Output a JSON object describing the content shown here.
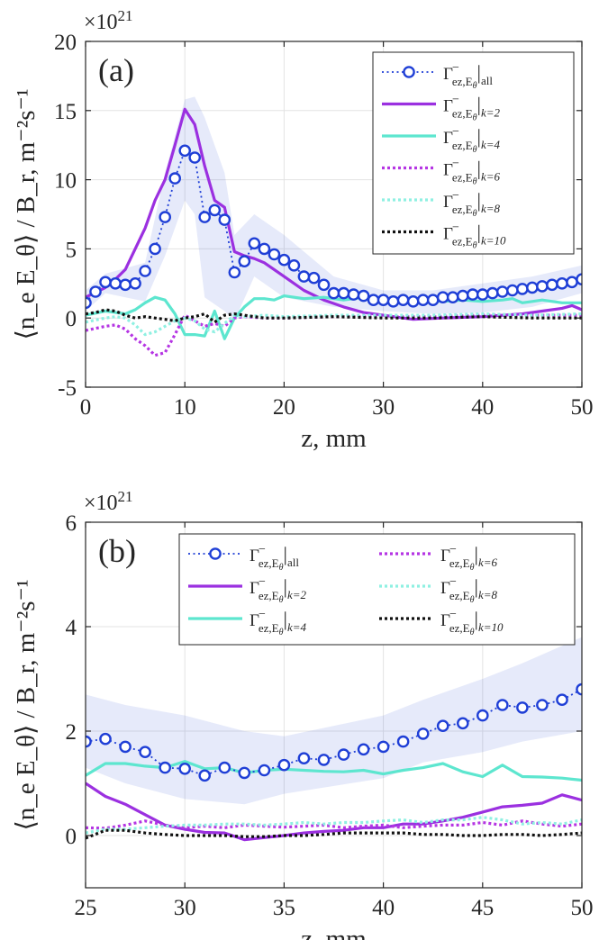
{
  "chart_data": [
    {
      "type": "line",
      "panel_label": "(a)",
      "exponent_label": "×10",
      "exponent_power": "21",
      "xlabel": "z, mm",
      "ylabel": "⟨n_e E_θ⟩ / B_r, m⁻²s⁻¹",
      "xlim": [
        0,
        50
      ],
      "ylim": [
        -5,
        20
      ],
      "xticks": [
        0,
        10,
        20,
        30,
        40,
        50
      ],
      "yticks": [
        -5,
        0,
        5,
        10,
        15,
        20
      ],
      "grid": true,
      "legend_position": "top-right",
      "legend_columns": 1,
      "band": {
        "x": [
          0,
          2,
          4,
          6,
          8,
          10,
          11,
          12,
          14,
          15,
          17,
          20,
          25,
          30,
          35,
          40,
          45,
          50
        ],
        "upper": [
          2.0,
          3.2,
          3.6,
          4.0,
          10.5,
          15.8,
          16.0,
          14.5,
          10.5,
          6.0,
          7.5,
          6.0,
          3.0,
          2.0,
          2.0,
          2.5,
          3.0,
          3.8
        ],
        "lower": [
          0.5,
          1.8,
          1.5,
          1.2,
          4.5,
          8.5,
          7.5,
          1.5,
          0.5,
          -0.2,
          3.0,
          1.5,
          0.8,
          0.5,
          0.3,
          0.4,
          0.8,
          1.8
        ]
      },
      "series": [
        {
          "name": "all",
          "sub": "all",
          "color": "#1f3fd6",
          "style": "dotted-circles",
          "x": [
            0,
            1,
            2,
            3,
            4,
            5,
            6,
            7,
            8,
            9,
            10,
            11,
            12,
            13,
            14,
            15,
            16,
            17,
            18,
            19,
            20,
            21,
            22,
            23,
            24,
            25,
            26,
            27,
            28,
            29,
            30,
            31,
            32,
            33,
            34,
            35,
            36,
            37,
            38,
            39,
            40,
            41,
            42,
            43,
            44,
            45,
            46,
            47,
            48,
            49,
            50
          ],
          "y": [
            1.1,
            1.9,
            2.6,
            2.5,
            2.4,
            2.5,
            3.4,
            5.0,
            7.3,
            10.1,
            12.1,
            11.6,
            7.3,
            7.8,
            7.1,
            3.3,
            4.1,
            5.4,
            5.0,
            4.6,
            4.2,
            3.8,
            3.0,
            2.9,
            2.4,
            1.8,
            1.8,
            1.7,
            1.6,
            1.3,
            1.3,
            1.2,
            1.3,
            1.2,
            1.3,
            1.3,
            1.5,
            1.5,
            1.6,
            1.7,
            1.7,
            1.8,
            1.9,
            2.0,
            2.1,
            2.2,
            2.3,
            2.4,
            2.5,
            2.6,
            2.8
          ]
        },
        {
          "name": "k=2",
          "sub": "k=2",
          "color": "#9b30e0",
          "style": "solid",
          "x": [
            0,
            2,
            3,
            4,
            5,
            6,
            7,
            8,
            9,
            10,
            11,
            12,
            13,
            14,
            15,
            16,
            17,
            18,
            20,
            22,
            24,
            26,
            28,
            30,
            33,
            36,
            40,
            44,
            46,
            48,
            49,
            50
          ],
          "y": [
            1.5,
            2.2,
            2.8,
            3.5,
            5.0,
            6.5,
            8.5,
            10.0,
            12.5,
            15.1,
            14.0,
            11.0,
            8.5,
            8.0,
            4.8,
            4.5,
            4.3,
            4.0,
            3.0,
            2.0,
            1.3,
            0.8,
            0.4,
            0.2,
            -0.1,
            0.0,
            0.1,
            0.3,
            0.5,
            0.7,
            0.9,
            0.6
          ]
        },
        {
          "name": "k=4",
          "sub": "k=4",
          "color": "#5de6cf",
          "style": "solid",
          "x": [
            0,
            2,
            4,
            5,
            6,
            7,
            8,
            9,
            10,
            11,
            12,
            13,
            14,
            15,
            16,
            17,
            18,
            19,
            20,
            22,
            24,
            26,
            28,
            30,
            32,
            34,
            36,
            38,
            40,
            42,
            43,
            44,
            45,
            46,
            48,
            50
          ],
          "y": [
            0.2,
            0.5,
            0.3,
            0.6,
            1.1,
            1.5,
            1.3,
            0.3,
            -1.2,
            -1.2,
            -1.3,
            0.5,
            -1.5,
            0.0,
            0.8,
            1.4,
            1.4,
            1.3,
            1.6,
            1.4,
            1.5,
            1.3,
            1.5,
            1.3,
            1.3,
            1.3,
            1.2,
            1.3,
            1.2,
            1.3,
            1.4,
            1.1,
            1.2,
            1.3,
            1.1,
            1.1
          ]
        },
        {
          "name": "k=6",
          "sub": "k=6",
          "color": "#b535e3",
          "style": "dotted",
          "x": [
            0,
            2,
            3,
            4,
            5,
            6,
            7,
            8,
            9,
            10,
            11,
            12,
            13,
            14,
            15,
            16,
            18,
            20,
            25,
            30,
            35,
            40,
            45,
            50
          ],
          "y": [
            -0.9,
            -0.6,
            -0.5,
            -0.8,
            -1.5,
            -2.0,
            -2.7,
            -2.5,
            -1.2,
            0.2,
            -0.2,
            -0.6,
            -0.4,
            -0.6,
            0.0,
            0.1,
            0.0,
            0.0,
            0.1,
            0.1,
            0.1,
            0.2,
            0.2,
            0.2
          ]
        },
        {
          "name": "k=8",
          "sub": "k=8",
          "color": "#8ff0e2",
          "style": "dotted",
          "x": [
            0,
            2,
            3,
            4,
            5,
            6,
            7,
            8,
            9,
            10,
            11,
            12,
            13,
            14,
            15,
            16,
            18,
            20,
            25,
            30,
            35,
            40,
            45,
            50
          ],
          "y": [
            -0.3,
            0.0,
            0.1,
            0.0,
            -0.5,
            -1.2,
            -1.0,
            -0.6,
            -0.2,
            0.0,
            -0.2,
            -0.8,
            -1.0,
            -0.4,
            0.2,
            0.1,
            0.2,
            0.1,
            0.2,
            0.2,
            0.2,
            0.3,
            0.2,
            0.3
          ]
        },
        {
          "name": "k=10",
          "sub": "k=10",
          "color": "#111111",
          "style": "dotted",
          "x": [
            0,
            1,
            2,
            3,
            4,
            5,
            6,
            7,
            8,
            9,
            10,
            11,
            12,
            13,
            14,
            15,
            16,
            18,
            20,
            25,
            30,
            35,
            40,
            45,
            50
          ],
          "y": [
            0.3,
            0.4,
            0.6,
            0.5,
            0.2,
            0.0,
            0.1,
            0.0,
            -0.1,
            -0.2,
            0.0,
            0.1,
            0.3,
            -0.3,
            0.2,
            0.3,
            0.2,
            0.0,
            0.0,
            0.1,
            0.0,
            0.0,
            0.1,
            0.0,
            0.0
          ]
        }
      ]
    },
    {
      "type": "line",
      "panel_label": "(b)",
      "exponent_label": "×10",
      "exponent_power": "21",
      "xlabel": "z, mm",
      "ylabel": "⟨n_e E_θ⟩ / B_r, m⁻²s⁻¹",
      "xlim": [
        25,
        50
      ],
      "ylim": [
        -1,
        6
      ],
      "xticks": [
        25,
        30,
        35,
        40,
        45,
        50
      ],
      "yticks": [
        0,
        2,
        4,
        6
      ],
      "grid": true,
      "legend_position": "top",
      "legend_columns": 2,
      "band": {
        "x": [
          25,
          27,
          30,
          33,
          35,
          40,
          42,
          45,
          47,
          50
        ],
        "upper": [
          2.7,
          2.5,
          2.3,
          2.0,
          1.9,
          2.3,
          2.6,
          3.0,
          3.3,
          3.8
        ],
        "lower": [
          1.3,
          1.0,
          0.7,
          0.6,
          0.8,
          1.1,
          1.4,
          1.6,
          1.8,
          2.0
        ]
      },
      "series": [
        {
          "name": "all",
          "sub": "all",
          "color": "#1f3fd6",
          "style": "dotted-circles",
          "x": [
            25,
            26,
            27,
            28,
            29,
            30,
            31,
            32,
            33,
            34,
            35,
            36,
            37,
            38,
            39,
            40,
            41,
            42,
            43,
            44,
            45,
            46,
            47,
            48,
            49,
            50
          ],
          "y": [
            1.8,
            1.85,
            1.7,
            1.6,
            1.3,
            1.28,
            1.15,
            1.3,
            1.2,
            1.25,
            1.35,
            1.48,
            1.45,
            1.55,
            1.65,
            1.7,
            1.8,
            1.95,
            2.1,
            2.15,
            2.3,
            2.5,
            2.45,
            2.5,
            2.6,
            2.8
          ]
        },
        {
          "name": "k=2",
          "sub": "k=2",
          "color": "#9b30e0",
          "style": "solid",
          "x": [
            25,
            26,
            27,
            28,
            29,
            30,
            31,
            32,
            33,
            34,
            35,
            36,
            37,
            38,
            39,
            40,
            41,
            42,
            43,
            44,
            45,
            46,
            47,
            48,
            49,
            50
          ],
          "y": [
            1.0,
            0.75,
            0.6,
            0.4,
            0.2,
            0.12,
            0.06,
            0.05,
            -0.08,
            -0.04,
            0.0,
            0.05,
            0.08,
            0.1,
            0.15,
            0.15,
            0.22,
            0.22,
            0.28,
            0.35,
            0.45,
            0.55,
            0.58,
            0.62,
            0.78,
            0.68
          ]
        },
        {
          "name": "k=4",
          "sub": "k=4",
          "color": "#5de6cf",
          "style": "solid",
          "x": [
            25,
            26,
            27,
            28,
            29,
            30,
            31,
            32,
            33,
            34,
            35,
            36,
            37,
            38,
            39,
            40,
            41,
            42,
            43,
            44,
            45,
            46,
            47,
            48,
            49,
            50
          ],
          "y": [
            1.15,
            1.38,
            1.38,
            1.33,
            1.3,
            1.42,
            1.28,
            1.3,
            1.2,
            1.25,
            1.27,
            1.25,
            1.23,
            1.22,
            1.25,
            1.18,
            1.25,
            1.3,
            1.38,
            1.22,
            1.13,
            1.35,
            1.13,
            1.12,
            1.1,
            1.06
          ]
        },
        {
          "name": "k=6",
          "sub": "k=6",
          "color": "#b535e3",
          "style": "dotted",
          "x": [
            25,
            26,
            27,
            28,
            29,
            30,
            31,
            32,
            33,
            34,
            35,
            36,
            37,
            38,
            39,
            40,
            41,
            42,
            43,
            44,
            45,
            46,
            47,
            48,
            49,
            50
          ],
          "y": [
            0.15,
            0.14,
            0.2,
            0.28,
            0.2,
            0.15,
            0.18,
            0.15,
            0.2,
            0.18,
            0.16,
            0.18,
            0.2,
            0.15,
            0.18,
            0.2,
            0.15,
            0.18,
            0.2,
            0.2,
            0.25,
            0.2,
            0.28,
            0.22,
            0.18,
            0.22
          ]
        },
        {
          "name": "k=8",
          "sub": "k=8",
          "color": "#8ff0e2",
          "style": "dotted",
          "x": [
            25,
            26,
            27,
            28,
            29,
            30,
            31,
            32,
            33,
            34,
            35,
            36,
            37,
            38,
            39,
            40,
            41,
            42,
            43,
            44,
            45,
            46,
            47,
            48,
            49,
            50
          ],
          "y": [
            0.05,
            0.12,
            0.12,
            0.15,
            0.18,
            0.2,
            0.2,
            0.22,
            0.22,
            0.2,
            0.22,
            0.25,
            0.22,
            0.25,
            0.25,
            0.28,
            0.3,
            0.25,
            0.3,
            0.3,
            0.35,
            0.3,
            0.22,
            0.25,
            0.22,
            0.3
          ]
        },
        {
          "name": "k=10",
          "sub": "k=10",
          "color": "#111111",
          "style": "dotted",
          "x": [
            25,
            26,
            27,
            28,
            29,
            30,
            31,
            32,
            33,
            34,
            35,
            36,
            37,
            38,
            39,
            40,
            41,
            42,
            43,
            44,
            45,
            46,
            47,
            48,
            49,
            50
          ],
          "y": [
            -0.05,
            0.1,
            0.1,
            0.05,
            0.02,
            0.0,
            0.0,
            0.0,
            -0.02,
            -0.02,
            0.0,
            0.0,
            0.02,
            0.05,
            0.05,
            0.05,
            0.05,
            0.02,
            0.02,
            0.0,
            0.0,
            0.02,
            0.02,
            0.0,
            0.02,
            0.05
          ]
        }
      ]
    }
  ]
}
